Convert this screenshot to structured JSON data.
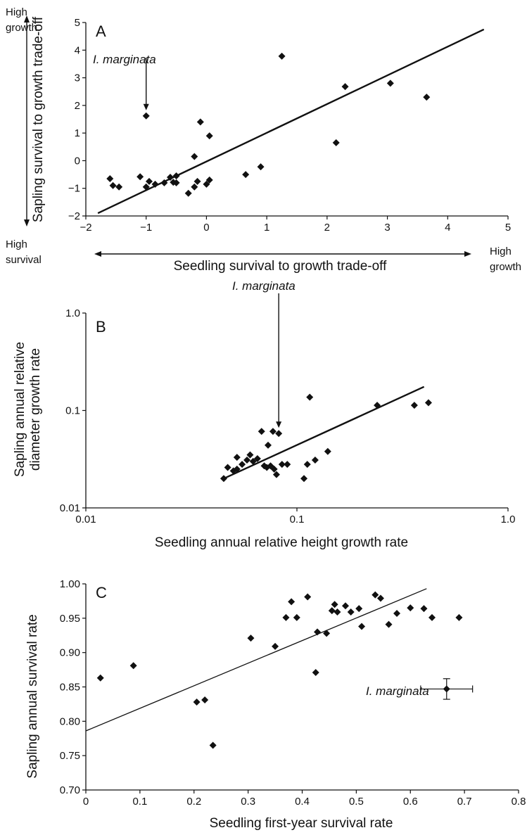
{
  "chart_data": [
    {
      "panel": "A",
      "type": "scatter",
      "xlabel": "Seedling survival to growth trade-off",
      "ylabel": "Sapling survival to growth trade-off",
      "x_ticks": [
        "−2",
        "0",
        "1",
        "2",
        "3",
        "4",
        "5"
      ],
      "y_ticks": [
        "−2",
        "−1",
        "0",
        "1",
        "2",
        "3",
        "4",
        "5"
      ],
      "xlim": [
        -2,
        5
      ],
      "ylim": [
        -2,
        5
      ],
      "corner_labels": {
        "top_left": "High\ngrowth",
        "bottom_left": "High\nsurvival",
        "bottom_right": "High\ngrowth"
      },
      "annotation": "I. marginata",
      "highlight_point": [
        -1.0,
        1.62
      ],
      "points": [
        [
          -1.6,
          -0.65
        ],
        [
          -1.55,
          -0.9
        ],
        [
          -1.45,
          -0.95
        ],
        [
          -1.1,
          -0.58
        ],
        [
          -1.0,
          -0.95
        ],
        [
          -0.95,
          -0.75
        ],
        [
          -0.85,
          -0.85
        ],
        [
          -0.7,
          -0.8
        ],
        [
          -0.6,
          -0.6
        ],
        [
          -0.55,
          -0.78
        ],
        [
          -0.5,
          -0.55
        ],
        [
          -0.5,
          -0.8
        ],
        [
          -0.3,
          -1.18
        ],
        [
          -0.2,
          -0.95
        ],
        [
          -0.15,
          -0.75
        ],
        [
          -0.2,
          0.15
        ],
        [
          -0.1,
          1.4
        ],
        [
          0.0,
          -0.85
        ],
        [
          0.05,
          0.9
        ],
        [
          0.05,
          -0.7
        ],
        [
          0.65,
          -0.5
        ],
        [
          0.9,
          -0.22
        ],
        [
          1.25,
          3.78
        ],
        [
          2.15,
          0.65
        ],
        [
          2.3,
          2.68
        ],
        [
          3.05,
          2.8
        ],
        [
          3.65,
          2.3
        ],
        [
          -1.0,
          1.62
        ]
      ],
      "fit_line": [
        [
          -1.8,
          -1.9
        ],
        [
          4.6,
          4.75
        ]
      ]
    },
    {
      "panel": "B",
      "type": "scatter",
      "xscale": "log",
      "yscale": "log",
      "xlabel": "Seedling annual relative height growth rate",
      "ylabel": "Sapling annual relative diameter growth rate",
      "x_ticks": [
        "0.01",
        "0.1",
        "1.0"
      ],
      "y_ticks": [
        "0.01",
        "0.1",
        "1.0"
      ],
      "xlim": [
        0.01,
        1.0
      ],
      "ylim": [
        0.01,
        1.0
      ],
      "annotation": "I. marginata",
      "highlight_point": [
        0.082,
        0.058
      ],
      "points": [
        [
          0.045,
          0.02
        ],
        [
          0.047,
          0.026
        ],
        [
          0.05,
          0.024
        ],
        [
          0.052,
          0.025
        ],
        [
          0.052,
          0.033
        ],
        [
          0.055,
          0.028
        ],
        [
          0.058,
          0.031
        ],
        [
          0.06,
          0.035
        ],
        [
          0.062,
          0.03
        ],
        [
          0.065,
          0.032
        ],
        [
          0.068,
          0.061
        ],
        [
          0.07,
          0.027
        ],
        [
          0.072,
          0.026
        ],
        [
          0.073,
          0.044
        ],
        [
          0.075,
          0.027
        ],
        [
          0.077,
          0.061
        ],
        [
          0.078,
          0.025
        ],
        [
          0.08,
          0.022
        ],
        [
          0.082,
          0.058
        ],
        [
          0.085,
          0.028
        ],
        [
          0.09,
          0.028
        ],
        [
          0.108,
          0.02
        ],
        [
          0.112,
          0.028
        ],
        [
          0.115,
          0.137
        ],
        [
          0.122,
          0.031
        ],
        [
          0.14,
          0.038
        ],
        [
          0.24,
          0.113
        ],
        [
          0.36,
          0.113
        ],
        [
          0.42,
          0.12
        ]
      ],
      "fit_line": [
        [
          0.045,
          0.02
        ],
        [
          0.4,
          0.175
        ]
      ]
    },
    {
      "panel": "C",
      "type": "scatter",
      "xlabel": "Seedling first-year survival rate",
      "ylabel": "Sapling annual survival rate",
      "x_ticks": [
        "0",
        "0.1",
        "0.2",
        "0.3",
        "0.4",
        "0.5",
        "0.6",
        "0.7",
        "0.8"
      ],
      "y_ticks": [
        "0.70",
        "0.75",
        "0.80",
        "0.85",
        "0.90",
        "0.95",
        "1.00"
      ],
      "xlim": [
        0,
        0.8
      ],
      "ylim": [
        0.7,
        1.0
      ],
      "annotation": "I. marginata",
      "highlight_point": {
        "x": 0.667,
        "y": 0.847,
        "x_err": 0.048,
        "y_err": 0.015
      },
      "points": [
        [
          0.027,
          0.863
        ],
        [
          0.088,
          0.881
        ],
        [
          0.205,
          0.828
        ],
        [
          0.22,
          0.831
        ],
        [
          0.235,
          0.765
        ],
        [
          0.305,
          0.921
        ],
        [
          0.35,
          0.909
        ],
        [
          0.37,
          0.951
        ],
        [
          0.38,
          0.974
        ],
        [
          0.39,
          0.951
        ],
        [
          0.41,
          0.981
        ],
        [
          0.425,
          0.871
        ],
        [
          0.428,
          0.93
        ],
        [
          0.445,
          0.928
        ],
        [
          0.455,
          0.961
        ],
        [
          0.46,
          0.97
        ],
        [
          0.465,
          0.959
        ],
        [
          0.48,
          0.968
        ],
        [
          0.49,
          0.959
        ],
        [
          0.505,
          0.964
        ],
        [
          0.51,
          0.938
        ],
        [
          0.535,
          0.984
        ],
        [
          0.545,
          0.979
        ],
        [
          0.56,
          0.941
        ],
        [
          0.575,
          0.957
        ],
        [
          0.6,
          0.965
        ],
        [
          0.625,
          0.964
        ],
        [
          0.64,
          0.951
        ],
        [
          0.69,
          0.951
        ]
      ],
      "fit_line": [
        [
          0.0,
          0.786
        ],
        [
          0.63,
          0.993
        ]
      ]
    }
  ]
}
